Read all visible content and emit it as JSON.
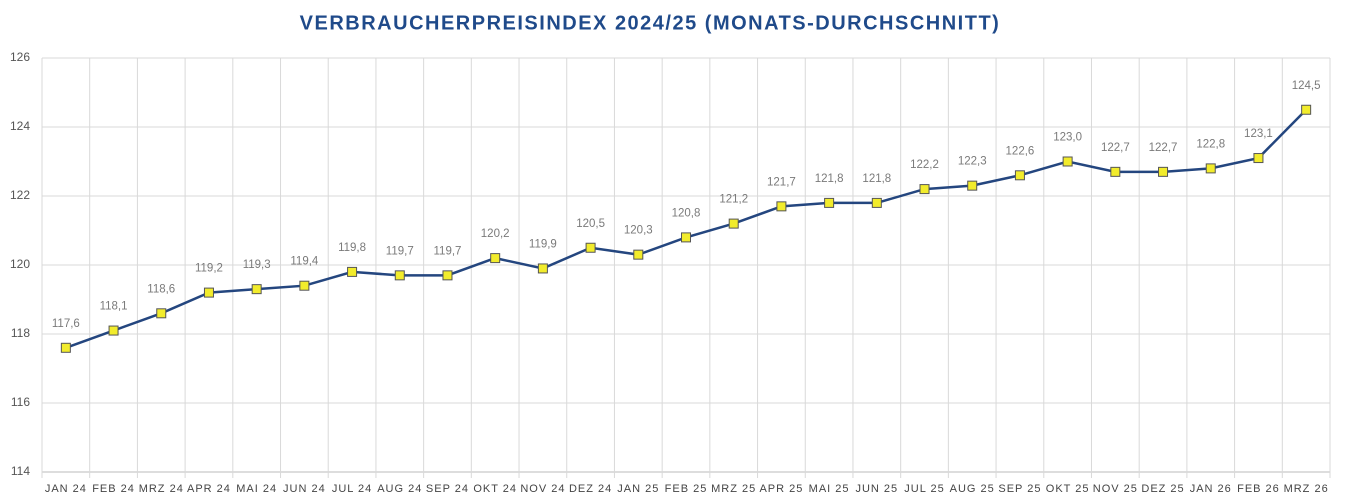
{
  "chart_data": {
    "type": "line",
    "title": "VERBRAUCHERPREISINDEX 2024/25 (MONATS-DURCHSCHNITT)",
    "categories": [
      "JAN 24",
      "FEB 24",
      "MRZ 24",
      "APR 24",
      "MAI 24",
      "JUN 24",
      "JUL 24",
      "AUG 24",
      "SEP 24",
      "OKT 24",
      "NOV 24",
      "DEZ 24",
      "JAN 25",
      "FEB 25",
      "MRZ 25",
      "APR 25",
      "MAI 25",
      "JUN 25",
      "JUL 25",
      "AUG 25",
      "SEP 25",
      "OKT 25",
      "NOV 25",
      "DEZ 25",
      "JAN 26",
      "FEB 26",
      "MRZ 26"
    ],
    "values": [
      117.6,
      118.1,
      118.6,
      119.2,
      119.3,
      119.4,
      119.8,
      119.7,
      119.7,
      120.2,
      119.9,
      120.5,
      120.3,
      120.8,
      121.2,
      121.7,
      121.8,
      121.8,
      122.2,
      122.3,
      122.6,
      123.0,
      122.7,
      122.7,
      122.8,
      123.1,
      124.5
    ],
    "value_labels": [
      "117,6",
      "118,1",
      "118,6",
      "119,2",
      "119,3",
      "119,4",
      "119,8",
      "119,7",
      "119,7",
      "120,2",
      "119,9",
      "120,5",
      "120,3",
      "120,8",
      "121,2",
      "121,7",
      "121,8",
      "121,8",
      "122,2",
      "122,3",
      "122,6",
      "123,0",
      "122,7",
      "122,7",
      "122,8",
      "123,1",
      "124,5"
    ],
    "color": "#24467f",
    "marker_color": "#f2ec2c",
    "ylim": [
      114,
      126
    ],
    "yticks": [
      114,
      116,
      118,
      120,
      122,
      124,
      126
    ],
    "grid": true
  }
}
